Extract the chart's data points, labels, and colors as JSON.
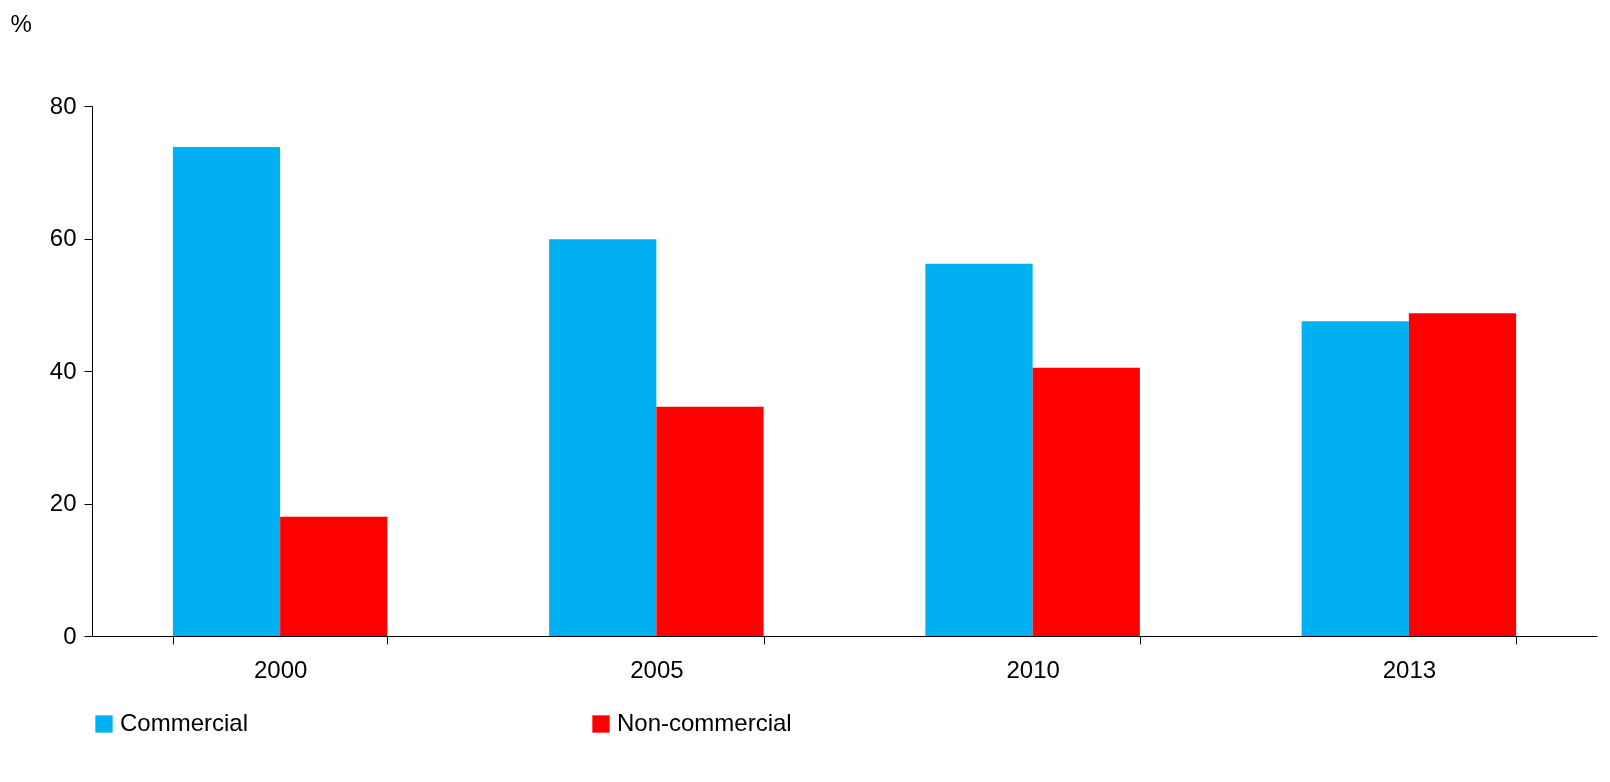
{
  "chart_data": {
    "type": "bar",
    "ylabel": "%",
    "categories": [
      "2000",
      "2005",
      "2010",
      "2013"
    ],
    "series": [
      {
        "name": "Commercial",
        "color": "#00b0f0",
        "values": [
          73.8,
          59.9,
          56.2,
          47.5
        ]
      },
      {
        "name": "Non-commercial",
        "color": "#ff0000",
        "values": [
          18.0,
          34.6,
          40.5,
          48.7
        ]
      }
    ],
    "ylim": [
      0,
      80
    ],
    "yticks": [
      0,
      20,
      40,
      60,
      80
    ],
    "grid": false,
    "legend": "bottom"
  }
}
